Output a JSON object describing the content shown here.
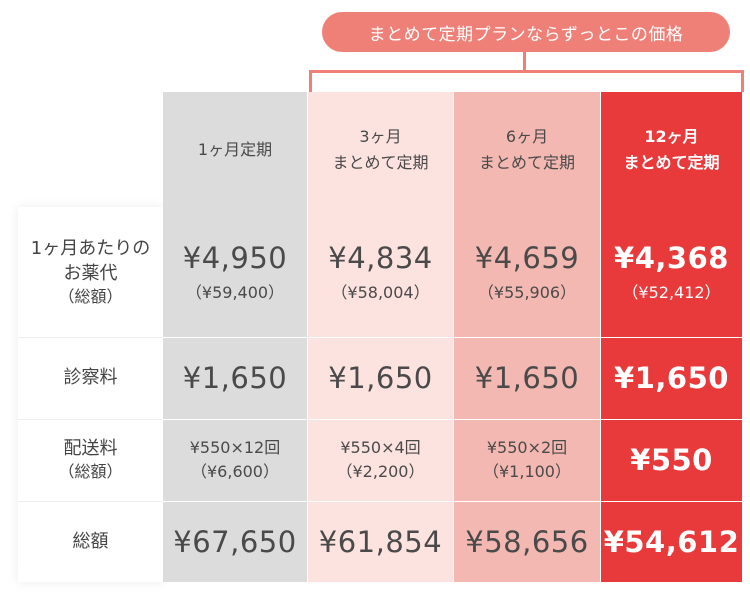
{
  "banner": "まとめて定期プランならずっとこの価格",
  "row_labels": {
    "medicine_line1": "1ヶ月あたりの",
    "medicine_line2": "お薬代",
    "medicine_line3": "（総額）",
    "consultation": "診察料",
    "shipping_line1": "配送料",
    "shipping_line2": "（総額）",
    "total": "総額"
  },
  "columns": [
    {
      "header_line1": "1ヶ月定期",
      "header_line2": "",
      "medicine_monthly": "¥4,950",
      "medicine_total": "（¥59,400）",
      "consultation": "¥1,650",
      "shipping_line1": "¥550×12回",
      "shipping_line2": "（¥6,600）",
      "total": "¥67,650"
    },
    {
      "header_line1": "3ヶ月",
      "header_line2": "まとめて定期",
      "medicine_monthly": "¥4,834",
      "medicine_total": "（¥58,004）",
      "consultation": "¥1,650",
      "shipping_line1": "¥550×4回",
      "shipping_line2": "（¥2,200）",
      "total": "¥61,854"
    },
    {
      "header_line1": "6ヶ月",
      "header_line2": "まとめて定期",
      "medicine_monthly": "¥4,659",
      "medicine_total": "（¥55,906）",
      "consultation": "¥1,650",
      "shipping_line1": "¥550×2回",
      "shipping_line2": "（¥1,100）",
      "total": "¥58,656"
    },
    {
      "header_line1": "12ヶ月",
      "header_line2": "まとめて定期",
      "medicine_monthly": "¥4,368",
      "medicine_total": "（¥52,412）",
      "consultation": "¥1,650",
      "shipping_line1": "¥550",
      "shipping_line2": "",
      "total": "¥54,612"
    }
  ],
  "colors": {
    "accent": "#ef8078",
    "plan_1m": "#dcdcdc",
    "plan_3m": "#fde3e0",
    "plan_6m": "#f3b8b1",
    "plan_12m": "#e8393b"
  }
}
